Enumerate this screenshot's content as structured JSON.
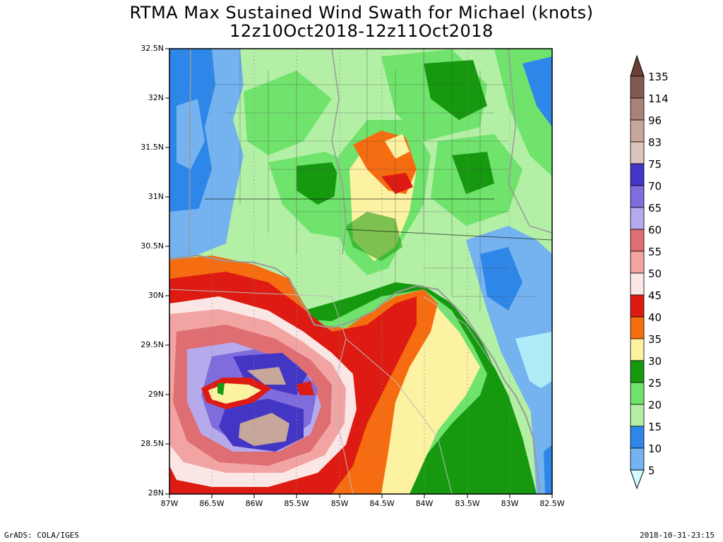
{
  "title": {
    "line1": "RTMA Max Sustained Wind Swath for Michael (knots)",
    "line2": "12z10Oct2018-12z11Oct2018"
  },
  "footer": {
    "left": "GrADS: COLA/IGES",
    "right": "2018-10-31-23:15"
  },
  "map": {
    "lat_labels": [
      "32.5N",
      "32N",
      "31.5N",
      "31N",
      "30.5N",
      "30N",
      "29.5N",
      "29N",
      "28.5N",
      "28N"
    ],
    "lon_labels": [
      "87W",
      "86.5W",
      "86W",
      "85.5W",
      "85W",
      "84.5W",
      "84W",
      "83.5W",
      "83W",
      "82.5W"
    ],
    "lat_range": [
      28.0,
      32.5
    ],
    "lon_range": [
      -87.0,
      -82.5
    ]
  },
  "colorbar": {
    "units": "knots",
    "levels": [
      "135",
      "114",
      "96",
      "83",
      "75",
      "70",
      "65",
      "60",
      "55",
      "50",
      "45",
      "40",
      "35",
      "30",
      "25",
      "20",
      "15",
      "10",
      "5"
    ],
    "colors_top_to_bottom": [
      "#835a4f",
      "#a98176",
      "#c8a79b",
      "#dcc3bb",
      "#4436c4",
      "#7f6cdd",
      "#b6aaec",
      "#de6e72",
      "#f2a4a2",
      "#fbe6e6",
      "#dd1b12",
      "#f66c10",
      "#fdf2a2",
      "#16990f",
      "#70e36c",
      "#b3f0a6",
      "#2e87e8",
      "#74b3f0",
      "#aeedf8"
    ],
    "arrow_top_color": "#6b4032",
    "arrow_bottom_color": "#d2fbff"
  },
  "palette": {
    "background": "#ffffff",
    "land_green_light": "#b3f0a6",
    "land_green_mid": "#70e36c",
    "land_green_dark": "#16990f",
    "blue_low": "#74b3f0",
    "border_gray": "#999999"
  }
}
